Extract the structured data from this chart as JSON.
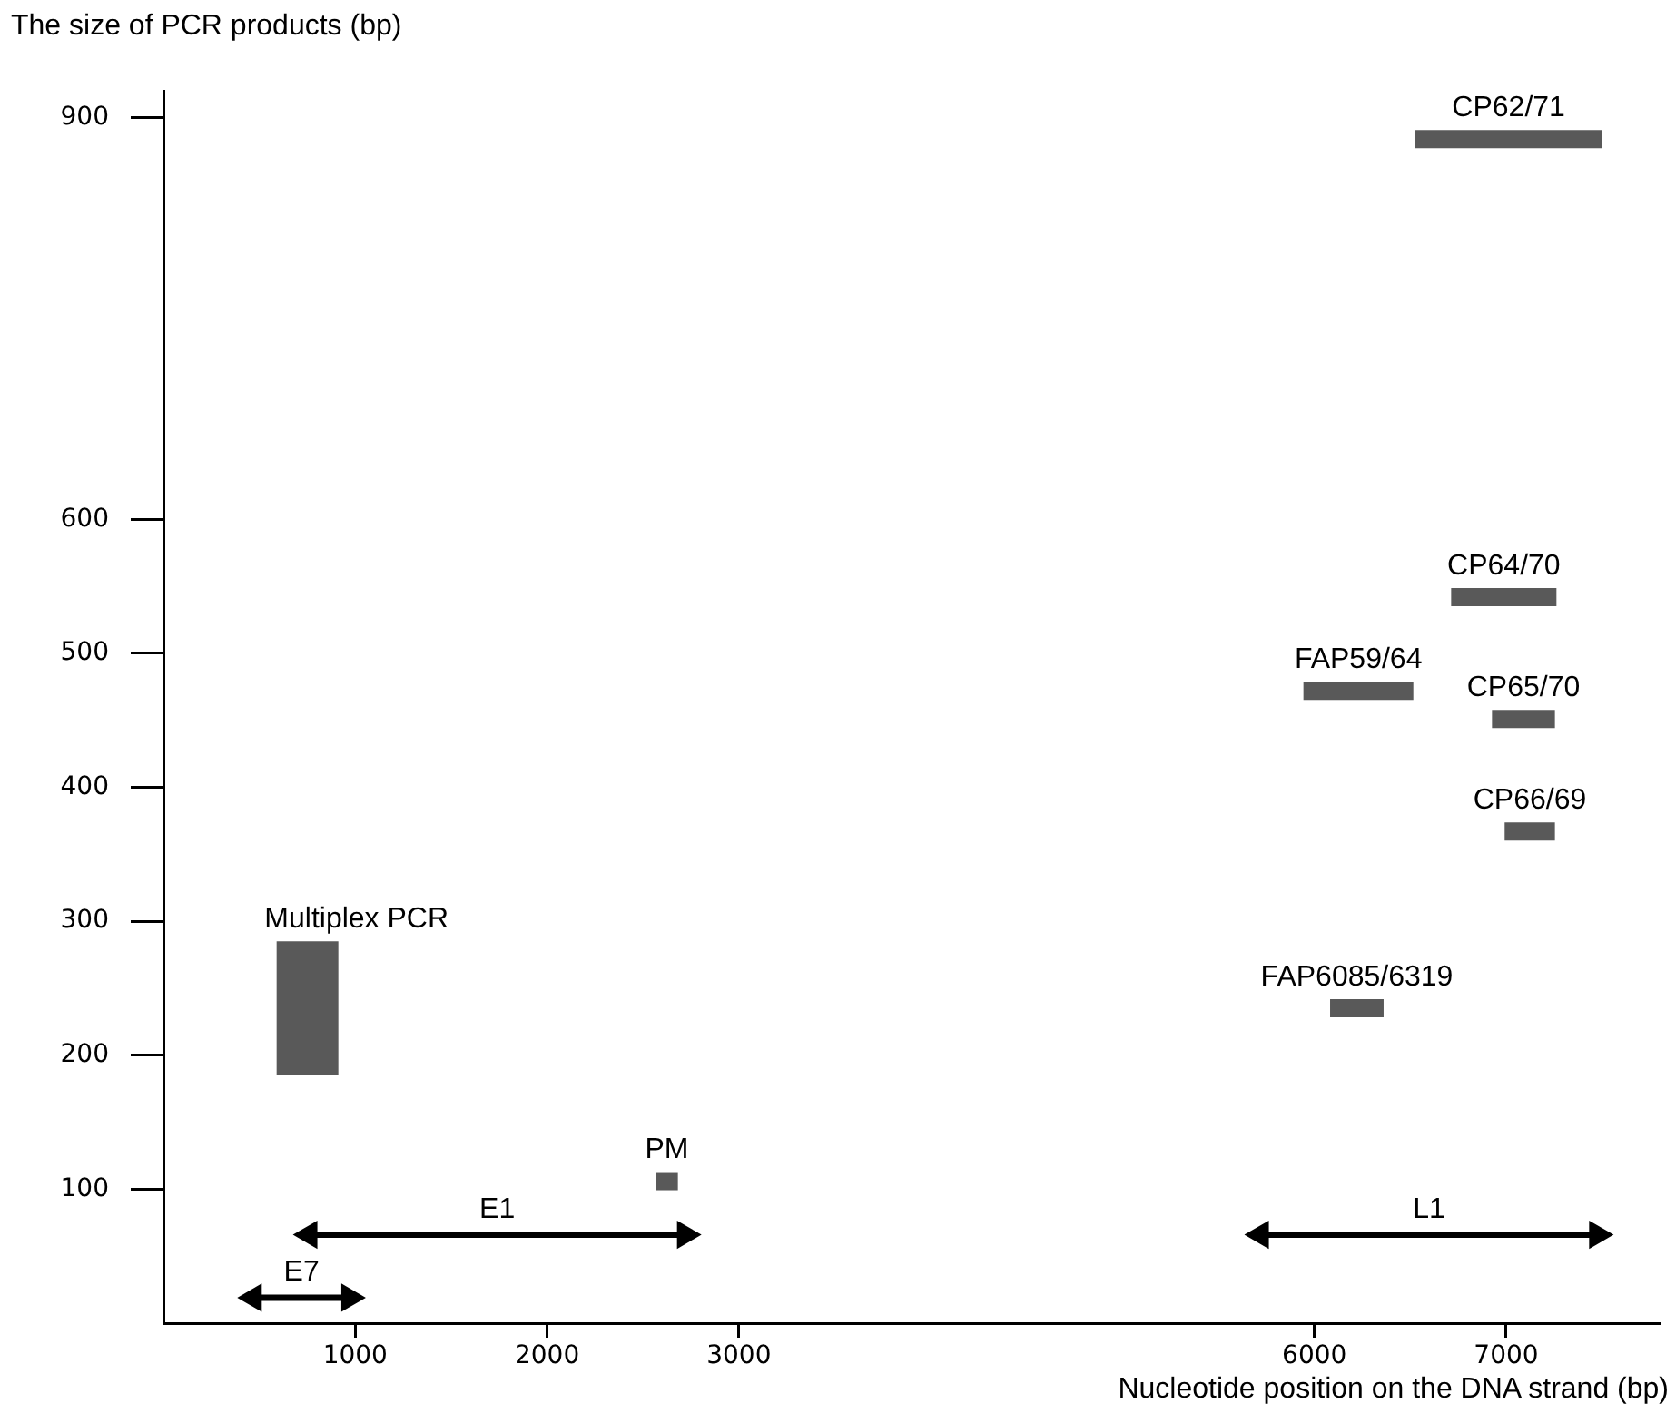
{
  "chart_data": {
    "type": "line",
    "ylabel": "The size of PCR products (bp)",
    "xlabel": "Nucleotide position on the DNA strand (bp)",
    "xlim": [
      0,
      7800
    ],
    "ylim": [
      0,
      920
    ],
    "xticks": [
      1000,
      2000,
      3000,
      6000,
      7000
    ],
    "yticks": [
      100,
      200,
      300,
      400,
      500,
      600,
      900
    ],
    "grid": false,
    "legend": false,
    "marker": "none",
    "line_style": "solid",
    "series": [
      {
        "name": "Multiplex PCR",
        "color": "#595959",
        "x": [
          751,
          751
        ],
        "values": [
          185,
          285
        ]
      },
      {
        "name": "PM",
        "color": "#595959",
        "x": [
          2566,
          2682
        ],
        "values": [
          106,
          106
        ]
      },
      {
        "name": "E1",
        "color": "#000000",
        "marker": "triangle",
        "x": [
          760,
          2720
        ],
        "values": [
          66,
          66
        ]
      },
      {
        "name": "E7",
        "color": "#000000",
        "marker": "triangle",
        "x": [
          470,
          970
        ],
        "values": [
          19,
          19
        ]
      },
      {
        "name": "CP62/71",
        "color": "#595959",
        "x": [
          6525,
          7500
        ],
        "values": [
          884,
          884
        ]
      },
      {
        "name": "CP64/70",
        "color": "#595959",
        "x": [
          6713,
          7262
        ],
        "values": [
          542,
          542
        ]
      },
      {
        "name": "FAP59/64",
        "color": "#595959",
        "x": [
          5943,
          6516
        ],
        "values": [
          472,
          472
        ]
      },
      {
        "name": "CP65/70",
        "color": "#595959",
        "x": [
          6926,
          7254
        ],
        "values": [
          451,
          451
        ]
      },
      {
        "name": "CP66/69",
        "color": "#595959",
        "x": [
          6992,
          7254
        ],
        "values": [
          367,
          367
        ]
      },
      {
        "name": "FAP6085/6319",
        "color": "#595959",
        "x": [
          6082,
          6361
        ],
        "values": [
          235,
          235
        ]
      },
      {
        "name": "L1",
        "color": "#000000",
        "marker": "triangle",
        "x": [
          5720,
          7475
        ],
        "values": [
          66,
          66
        ]
      }
    ]
  }
}
